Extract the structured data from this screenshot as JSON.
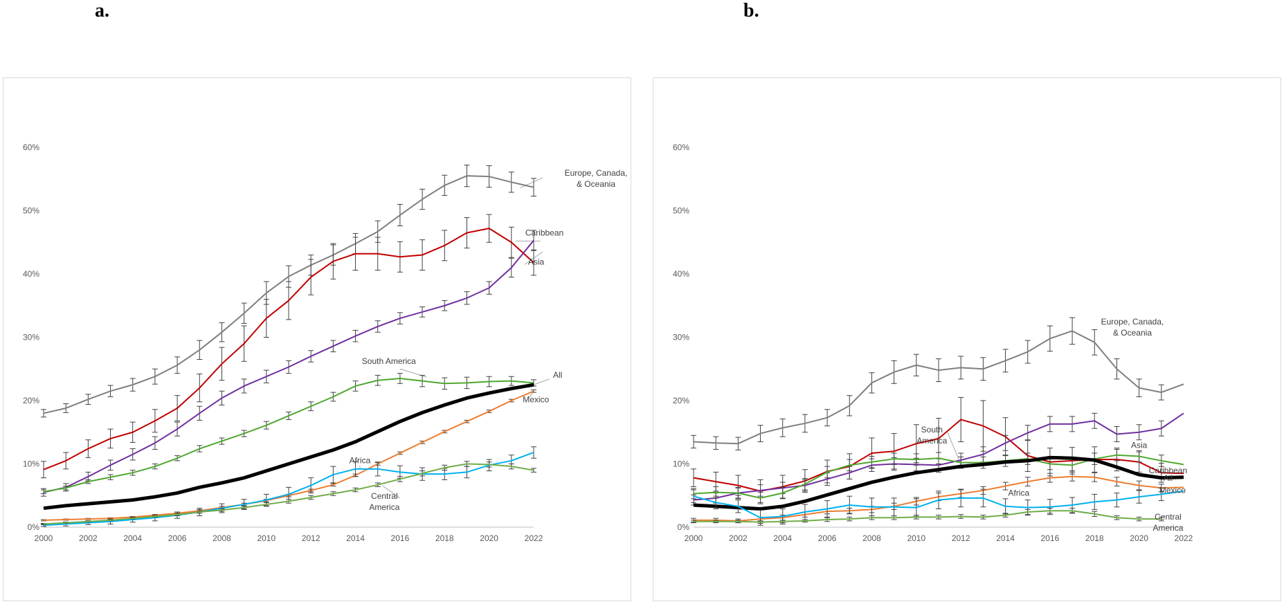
{
  "panels": [
    {
      "letter": "a."
    },
    {
      "letter": "b."
    }
  ],
  "chart_data": [
    {
      "type": "line",
      "title": "",
      "xlabel": "",
      "ylabel": "",
      "x": [
        2000,
        2001,
        2002,
        2003,
        2004,
        2005,
        2006,
        2007,
        2008,
        2009,
        2010,
        2011,
        2012,
        2013,
        2014,
        2015,
        2016,
        2017,
        2018,
        2019,
        2020,
        2021,
        2022
      ],
      "xticks": [
        "2000",
        "2002",
        "2004",
        "2006",
        "2008",
        "2010",
        "2012",
        "2014",
        "2016",
        "2018",
        "2020",
        "2022"
      ],
      "yticks": [
        "0%",
        "10%",
        "20%",
        "30%",
        "40%",
        "50%",
        "60%"
      ],
      "ylim": [
        0,
        60
      ],
      "grid": false,
      "legend": "inline labels",
      "series": [
        {
          "name": "Europe, Canada, & Oceania",
          "color": "#7f7f7f",
          "width": 2,
          "values": [
            18.0,
            18.8,
            20.2,
            21.5,
            22.5,
            23.8,
            25.6,
            28.0,
            30.8,
            33.8,
            37.0,
            39.6,
            41.4,
            43.0,
            44.8,
            46.7,
            49.3,
            51.8,
            54.0,
            55.5,
            55.4,
            54.5,
            53.7
          ],
          "errors": [
            0.6,
            0.7,
            0.8,
            0.9,
            1.0,
            1.2,
            1.3,
            1.5,
            1.5,
            1.6,
            1.8,
            1.7,
            1.6,
            1.6,
            1.6,
            1.7,
            1.7,
            1.6,
            1.6,
            1.7,
            1.7,
            1.6,
            1.4
          ]
        },
        {
          "name": "Caribbean",
          "color": "#c00000",
          "width": 2,
          "values": [
            9.1,
            10.5,
            12.4,
            14.0,
            15.0,
            16.8,
            18.8,
            22.0,
            25.8,
            29.0,
            33.0,
            35.8,
            39.5,
            42.0,
            43.2,
            43.2,
            42.7,
            43.0,
            44.5,
            46.5,
            47.2,
            45.0,
            41.8
          ],
          "errors": [
            1.3,
            1.3,
            1.4,
            1.5,
            1.6,
            1.8,
            2.0,
            2.2,
            2.6,
            2.8,
            3.0,
            3.0,
            2.8,
            2.8,
            2.6,
            2.6,
            2.4,
            2.4,
            2.4,
            2.4,
            2.2,
            2.4,
            2.0
          ]
        },
        {
          "name": "Asia",
          "color": "#7030a0",
          "width": 2,
          "values": [
            5.5,
            6.3,
            8.0,
            9.8,
            11.5,
            13.3,
            15.5,
            18.0,
            20.4,
            22.3,
            23.8,
            25.3,
            27.0,
            28.6,
            30.2,
            31.7,
            33.0,
            34.0,
            35.0,
            36.2,
            37.8,
            41.0,
            45.3
          ],
          "errors": [
            0.6,
            0.6,
            0.7,
            0.8,
            0.9,
            1.0,
            1.1,
            1.1,
            1.1,
            1.1,
            1.0,
            1.0,
            0.9,
            0.9,
            0.9,
            0.9,
            0.9,
            0.8,
            0.8,
            1.0,
            1.0,
            1.5,
            1.6
          ]
        },
        {
          "name": "South America",
          "color": "#4ea72e",
          "width": 2,
          "values": [
            5.6,
            6.2,
            7.2,
            7.9,
            8.6,
            9.6,
            10.9,
            12.4,
            13.6,
            14.8,
            16.1,
            17.6,
            19.1,
            20.6,
            22.3,
            23.2,
            23.5,
            23.1,
            22.7,
            22.8,
            23.0,
            23.1,
            22.8
          ],
          "errors": [
            0.3,
            0.3,
            0.3,
            0.4,
            0.4,
            0.4,
            0.4,
            0.5,
            0.5,
            0.5,
            0.6,
            0.6,
            0.7,
            0.7,
            0.8,
            0.8,
            0.8,
            0.9,
            0.9,
            0.9,
            0.8,
            0.7,
            0.5
          ]
        },
        {
          "name": "All",
          "color": "#000000",
          "width": 5,
          "values": [
            3.0,
            3.4,
            3.7,
            4.0,
            4.3,
            4.8,
            5.4,
            6.3,
            7.0,
            7.8,
            8.9,
            10.0,
            11.1,
            12.2,
            13.5,
            15.1,
            16.7,
            18.1,
            19.3,
            20.4,
            21.2,
            21.9,
            22.5
          ],
          "errors": [
            0,
            0,
            0,
            0,
            0,
            0,
            0,
            0,
            0,
            0,
            0,
            0,
            0,
            0,
            0,
            0,
            0,
            0,
            0,
            0,
            0,
            0,
            0
          ]
        },
        {
          "name": "Mexico",
          "color": "#ed7d31",
          "width": 2,
          "values": [
            1.1,
            1.2,
            1.3,
            1.4,
            1.6,
            1.9,
            2.2,
            2.6,
            3.1,
            3.6,
            4.2,
            5.0,
            5.8,
            6.7,
            8.2,
            10.0,
            11.7,
            13.4,
            15.1,
            16.7,
            18.3,
            20.0,
            21.5
          ],
          "errors": [
            0.1,
            0.1,
            0.1,
            0.1,
            0.1,
            0.1,
            0.2,
            0.2,
            0.2,
            0.2,
            0.2,
            0.2,
            0.2,
            0.2,
            0.2,
            0.2,
            0.2,
            0.2,
            0.2,
            0.2,
            0.2,
            0.2,
            0.2
          ]
        },
        {
          "name": "Africa",
          "color": "#00b0f0",
          "width": 2,
          "values": [
            0.3,
            0.5,
            0.7,
            0.9,
            1.2,
            1.5,
            1.9,
            2.4,
            3.0,
            3.6,
            4.3,
            5.2,
            6.6,
            8.3,
            9.2,
            9.2,
            8.7,
            8.4,
            8.4,
            8.7,
            9.8,
            10.5,
            11.8
          ],
          "errors": [
            0.2,
            0.3,
            0.3,
            0.4,
            0.4,
            0.5,
            0.5,
            0.6,
            0.7,
            0.8,
            0.9,
            1.1,
            1.2,
            1.3,
            1.2,
            1.1,
            1.0,
            1.0,
            0.9,
            0.9,
            0.9,
            0.9,
            0.9
          ]
        },
        {
          "name": "Central America",
          "color": "#70ad47",
          "width": 2,
          "values": [
            0.5,
            0.7,
            0.9,
            1.1,
            1.4,
            1.7,
            2.0,
            2.4,
            2.7,
            3.1,
            3.6,
            4.1,
            4.7,
            5.3,
            5.9,
            6.7,
            7.6,
            8.5,
            9.4,
            10.0,
            9.9,
            9.6,
            9.0
          ],
          "errors": [
            0.1,
            0.1,
            0.1,
            0.1,
            0.1,
            0.1,
            0.2,
            0.2,
            0.2,
            0.2,
            0.3,
            0.3,
            0.3,
            0.3,
            0.3,
            0.3,
            0.4,
            0.4,
            0.4,
            0.4,
            0.4,
            0.4,
            0.3
          ]
        }
      ]
    },
    {
      "type": "line",
      "title": "",
      "xlabel": "",
      "ylabel": "",
      "x": [
        2000,
        2001,
        2002,
        2003,
        2004,
        2005,
        2006,
        2007,
        2008,
        2009,
        2010,
        2011,
        2012,
        2013,
        2014,
        2015,
        2016,
        2017,
        2018,
        2019,
        2020,
        2021,
        2022
      ],
      "xticks": [
        "2000",
        "2002",
        "2004",
        "2006",
        "2008",
        "2010",
        "2012",
        "2014",
        "2016",
        "2018",
        "2020",
        "2022"
      ],
      "yticks": [
        "0%",
        "10%",
        "20%",
        "30%",
        "40%",
        "50%",
        "60%"
      ],
      "ylim": [
        0,
        60
      ],
      "grid": false,
      "legend": "inline labels",
      "series": [
        {
          "name": "Europe, Canada, & Oceania",
          "color": "#7f7f7f",
          "width": 2,
          "values": [
            13.5,
            13.3,
            13.2,
            14.8,
            15.7,
            16.4,
            17.3,
            19.2,
            22.8,
            24.5,
            25.6,
            24.8,
            25.2,
            25.0,
            26.3,
            27.7,
            29.8,
            31.0,
            29.2,
            25.0,
            22.0,
            21.3,
            22.6
          ],
          "errors": [
            1.0,
            1.0,
            1.0,
            1.3,
            1.4,
            1.4,
            1.3,
            1.6,
            1.6,
            1.8,
            1.7,
            1.8,
            1.8,
            1.8,
            1.8,
            1.8,
            2.0,
            2.1,
            2.0,
            1.6,
            1.4,
            1.2,
            0
          ]
        },
        {
          "name": "Caribbean",
          "color": "#c00000",
          "width": 2,
          "values": [
            7.8,
            7.2,
            6.6,
            5.7,
            6.4,
            7.3,
            8.8,
            9.6,
            11.7,
            12.0,
            13.2,
            14.0,
            17.0,
            16.0,
            14.3,
            11.3,
            10.3,
            10.5,
            10.7,
            10.7,
            10.3,
            8.6,
            8.5
          ],
          "errors": [
            1.4,
            1.5,
            1.6,
            1.8,
            1.8,
            1.8,
            1.8,
            2.0,
            2.4,
            2.8,
            3.0,
            3.2,
            3.5,
            4.0,
            3.0,
            2.5,
            2.2,
            2.1,
            2.0,
            1.8,
            1.6,
            1.5,
            0
          ]
        },
        {
          "name": "Asia",
          "color": "#7030a0",
          "width": 2,
          "values": [
            4.3,
            4.6,
            5.4,
            5.8,
            6.2,
            6.6,
            7.6,
            8.6,
            9.8,
            10.0,
            9.9,
            9.8,
            10.6,
            11.5,
            13.3,
            14.9,
            16.3,
            16.3,
            16.8,
            14.7,
            15.0,
            15.6,
            18.0
          ],
          "errors": [
            0.8,
            0.8,
            0.8,
            0.9,
            0.9,
            0.9,
            1.0,
            1.0,
            1.0,
            1.0,
            1.0,
            1.1,
            1.1,
            1.2,
            1.2,
            1.2,
            1.2,
            1.2,
            1.2,
            1.2,
            1.2,
            1.2,
            0
          ]
        },
        {
          "name": "South America",
          "color": "#4ea72e",
          "width": 2,
          "values": [
            5.3,
            5.5,
            5.4,
            4.6,
            5.4,
            6.8,
            8.7,
            9.8,
            10.3,
            10.8,
            10.7,
            10.9,
            10.2,
            10.2,
            10.5,
            10.8,
            10.0,
            9.8,
            10.8,
            11.4,
            11.2,
            10.5,
            9.9
          ],
          "errors": [
            0.8,
            0.9,
            0.9,
            0.9,
            0.9,
            0.9,
            0.9,
            0.9,
            0.9,
            0.9,
            0.9,
            0.9,
            0.9,
            0.9,
            0.9,
            0.9,
            0.9,
            0.9,
            0.9,
            0.9,
            0.9,
            0.9,
            0
          ]
        },
        {
          "name": "All",
          "color": "#000000",
          "width": 5,
          "values": [
            3.5,
            3.3,
            3.1,
            2.9,
            3.3,
            4.1,
            5.1,
            6.1,
            7.1,
            7.9,
            8.6,
            9.1,
            9.6,
            9.9,
            10.3,
            10.5,
            11.0,
            10.9,
            10.6,
            9.5,
            8.3,
            7.8,
            7.9
          ],
          "errors": [
            0,
            0,
            0,
            0,
            0,
            0,
            0,
            0,
            0,
            0,
            0,
            0,
            0,
            0,
            0,
            0,
            0,
            0,
            0,
            0,
            0,
            0,
            0
          ]
        },
        {
          "name": "Mexico",
          "color": "#ed7d31",
          "width": 2,
          "values": [
            1.1,
            1.1,
            1.0,
            1.3,
            1.5,
            2.0,
            2.5,
            2.6,
            2.8,
            3.3,
            4.1,
            4.8,
            5.3,
            5.8,
            6.5,
            7.2,
            7.8,
            8.0,
            7.9,
            7.2,
            6.6,
            6.2,
            6.3
          ],
          "errors": [
            0.3,
            0.3,
            0.3,
            0.3,
            0.4,
            0.4,
            0.4,
            0.4,
            0.5,
            0.5,
            0.6,
            0.6,
            0.6,
            0.6,
            0.6,
            0.7,
            0.7,
            0.7,
            0.7,
            0.7,
            0.7,
            0.6,
            0
          ]
        },
        {
          "name": "Africa",
          "color": "#00b0f0",
          "width": 2,
          "values": [
            4.9,
            3.9,
            3.3,
            1.5,
            1.7,
            2.4,
            2.9,
            3.5,
            3.2,
            3.2,
            3.1,
            4.3,
            4.6,
            4.6,
            3.3,
            3.1,
            3.2,
            3.5,
            4.0,
            4.3,
            4.8,
            5.2,
            5.7
          ],
          "errors": [
            1.0,
            1.0,
            1.0,
            1.2,
            1.2,
            1.2,
            1.3,
            1.4,
            1.4,
            1.4,
            1.4,
            1.4,
            1.4,
            1.4,
            1.2,
            1.2,
            1.2,
            1.2,
            1.2,
            1.1,
            1.0,
            1.0,
            0
          ]
        },
        {
          "name": "Central America",
          "color": "#70ad47",
          "width": 2,
          "values": [
            0.9,
            0.9,
            0.9,
            0.8,
            0.9,
            1.0,
            1.2,
            1.3,
            1.5,
            1.5,
            1.6,
            1.6,
            1.7,
            1.6,
            1.9,
            2.4,
            2.6,
            2.6,
            2.1,
            1.5,
            1.3,
            1.3,
            0
          ],
          "errors": [
            0.2,
            0.2,
            0.2,
            0.2,
            0.2,
            0.2,
            0.3,
            0.3,
            0.3,
            0.3,
            0.3,
            0.3,
            0.3,
            0.3,
            0.3,
            0.4,
            0.4,
            0.4,
            0.4,
            0.3,
            0.3,
            0.3,
            0
          ]
        }
      ]
    }
  ],
  "labels": [
    [
      {
        "series": 0,
        "lines": [
          "Europe, Canada,",
          "& Oceania"
        ]
      },
      {
        "series": 1,
        "lines": [
          "Caribbean"
        ]
      },
      {
        "series": 2,
        "lines": [
          "Asia"
        ]
      },
      {
        "series": 3,
        "lines": [
          "South America"
        ]
      },
      {
        "series": 4,
        "lines": [
          "All"
        ]
      },
      {
        "series": 5,
        "lines": [
          "Mexico"
        ]
      },
      {
        "series": 6,
        "lines": [
          "Africa"
        ]
      },
      {
        "series": 7,
        "lines": [
          "Central",
          "America"
        ]
      }
    ],
    [
      {
        "series": 0,
        "lines": [
          "Europe, Canada,",
          "& Oceania"
        ]
      },
      {
        "series": 1,
        "lines": [
          "Caribbean"
        ]
      },
      {
        "series": 2,
        "lines": [
          "Asia"
        ]
      },
      {
        "series": 3,
        "lines": [
          "South",
          "America"
        ]
      },
      {
        "series": 4,
        "lines": [
          "All"
        ]
      },
      {
        "series": 5,
        "lines": [
          "Mexico"
        ]
      },
      {
        "series": 6,
        "lines": [
          "Africa"
        ]
      },
      {
        "series": 7,
        "lines": [
          "Central",
          "America"
        ]
      }
    ]
  ]
}
